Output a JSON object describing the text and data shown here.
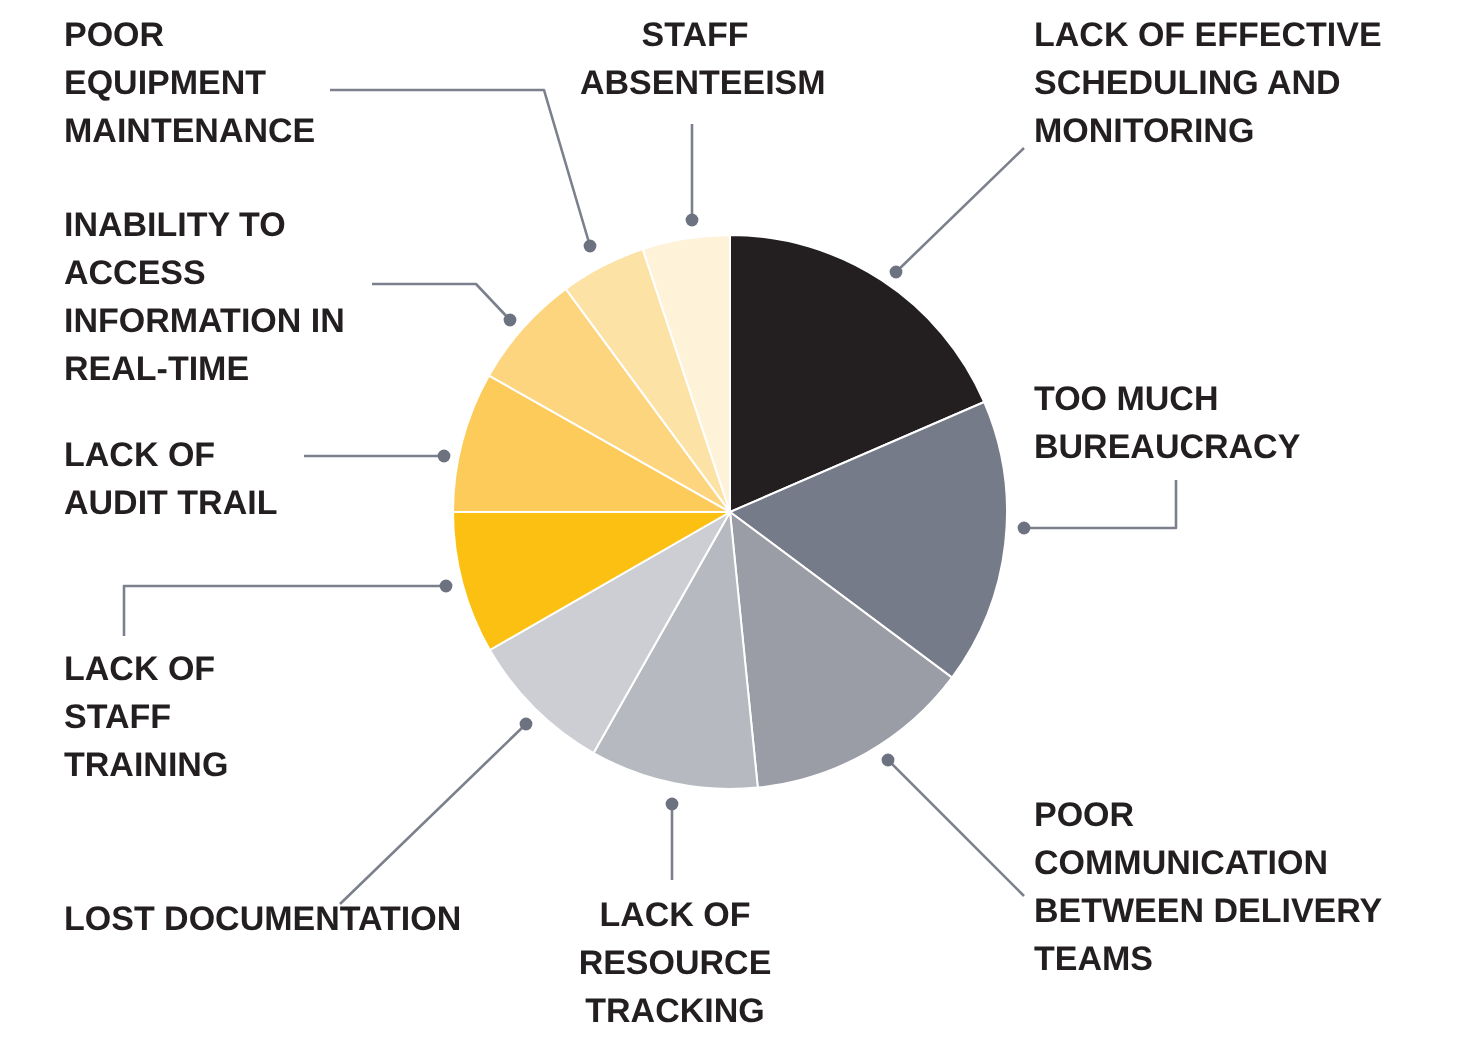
{
  "chart_data": {
    "type": "pie",
    "categories": [
      "LACK OF EFFECTIVE SCHEDULING AND MONITORING",
      "TOO MUCH BUREAUCRACY",
      "POOR COMMUNICATION BETWEEN DELIVERY TEAMS",
      "LACK OF RESOURCE TRACKING",
      "LOST DOCUMENTATION",
      "LACK OF STAFF TRAINING",
      "LACK OF AUDIT TRAIL",
      "INABILITY TO ACCESS INFORMATION IN REAL-TIME",
      "POOR EQUIPMENT MAINTENANCE",
      "STAFF ABSENTEEISM"
    ],
    "values": [
      18.5,
      16.7,
      13.2,
      9.8,
      8.5,
      8.3,
      8.2,
      6.7,
      5.0,
      5.1
    ],
    "colors": [
      "#231f20",
      "#767b89",
      "#9a9ca6",
      "#b7b9c0",
      "#cdced3",
      "#fcc012",
      "#fdcb5a",
      "#fdd57f",
      "#fde2a6",
      "#fef2d9"
    ]
  }
}
